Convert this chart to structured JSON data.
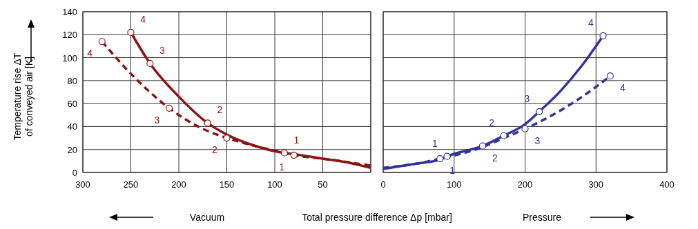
{
  "chart_data": [
    {
      "type": "line",
      "ylabel": "Temperature rise ΔT\nof conveyed air [K]",
      "xlabel": "Total pressure difference Δp [mbar]",
      "xlim": [
        300,
        0
      ],
      "xticks": [
        300,
        250,
        200,
        150,
        100,
        50,
        {
          "value": 0,
          "label": null
        }
      ],
      "ylim": [
        0,
        140
      ],
      "yticks": [
        0,
        20,
        40,
        60,
        80,
        100,
        120,
        140
      ],
      "grid": true,
      "series": [
        {
          "color": "#8b1414",
          "line_style": "solid",
          "x": [
            250,
            230,
            200,
            170,
            150,
            120,
            90,
            80,
            50,
            20,
            0
          ],
          "values": [
            122,
            95,
            66,
            43,
            33,
            23,
            17,
            16,
            12,
            8,
            4
          ]
        },
        {
          "color": "#8b1414",
          "line_style": "dashed",
          "x": [
            280,
            250,
            210,
            180,
            150,
            120,
            90,
            80,
            50,
            0
          ],
          "values": [
            114,
            86,
            56,
            40,
            30,
            23,
            17,
            15,
            12,
            6
          ]
        },
        {
          "type": "scatter",
          "marker": "circle",
          "color": "#8b1414",
          "x": [
            250,
            230,
            170,
            90
          ],
          "values": [
            122,
            95,
            43,
            17
          ]
        },
        {
          "type": "scatter",
          "marker": "circle",
          "color": "#8b1414",
          "x": [
            280,
            210,
            150,
            80
          ],
          "values": [
            114,
            56,
            30,
            15
          ]
        }
      ],
      "annotations": [
        {
          "text": "4",
          "x": 250,
          "y": 122
        },
        {
          "text": "3",
          "x": 230,
          "y": 95
        },
        {
          "text": "2",
          "x": 170,
          "y": 43
        },
        {
          "text": "1",
          "x": 90,
          "y": 17
        },
        {
          "text": "4",
          "x": 280,
          "y": 114
        },
        {
          "text": "3",
          "x": 210,
          "y": 56
        },
        {
          "text": "2",
          "x": 150,
          "y": 30
        },
        {
          "text": "1",
          "x": 80,
          "y": 15
        },
        "Vacuum"
      ]
    },
    {
      "type": "line",
      "xlim": [
        0,
        400
      ],
      "xticks": [
        0,
        100,
        200,
        300,
        400
      ],
      "ylim": [
        0,
        140
      ],
      "yticks": [
        0,
        20,
        40,
        60,
        80,
        100,
        120,
        140
      ],
      "tick_labels": "x",
      "grid": true,
      "series": [
        {
          "color": "#33339a",
          "line_style": "solid",
          "x": [
            0,
            50,
            80,
            90,
            140,
            170,
            200,
            220,
            250,
            280,
            310
          ],
          "values": [
            3,
            8,
            11,
            14,
            23,
            32,
            42,
            53,
            71,
            93,
            119
          ]
        },
        {
          "color": "#33339a",
          "line_style": "dashed",
          "x": [
            0,
            50,
            80,
            140,
            170,
            200,
            250,
            290,
            320
          ],
          "values": [
            4,
            8,
            12,
            22,
            30,
            38,
            54,
            70,
            84
          ]
        },
        {
          "type": "scatter",
          "marker": "circle",
          "color": "#33339a",
          "x": [
            90,
            170,
            220,
            310
          ],
          "values": [
            14,
            32,
            53,
            119
          ]
        },
        {
          "type": "scatter",
          "marker": "circle",
          "color": "#33339a",
          "x": [
            80,
            140,
            200,
            320
          ],
          "values": [
            12,
            23,
            38,
            84
          ]
        }
      ],
      "annotations": [
        {
          "text": "1",
          "x": 90,
          "y": 14
        },
        {
          "text": "2",
          "x": 170,
          "y": 32
        },
        {
          "text": "3",
          "x": 220,
          "y": 53
        },
        {
          "text": "4",
          "x": 310,
          "y": 119
        },
        {
          "text": "1",
          "x": 80,
          "y": 12
        },
        {
          "text": "2",
          "x": 140,
          "y": 23
        },
        {
          "text": "3",
          "x": 200,
          "y": 38
        },
        {
          "text": "4",
          "x": 320,
          "y": 84
        },
        "Pressure"
      ]
    }
  ]
}
